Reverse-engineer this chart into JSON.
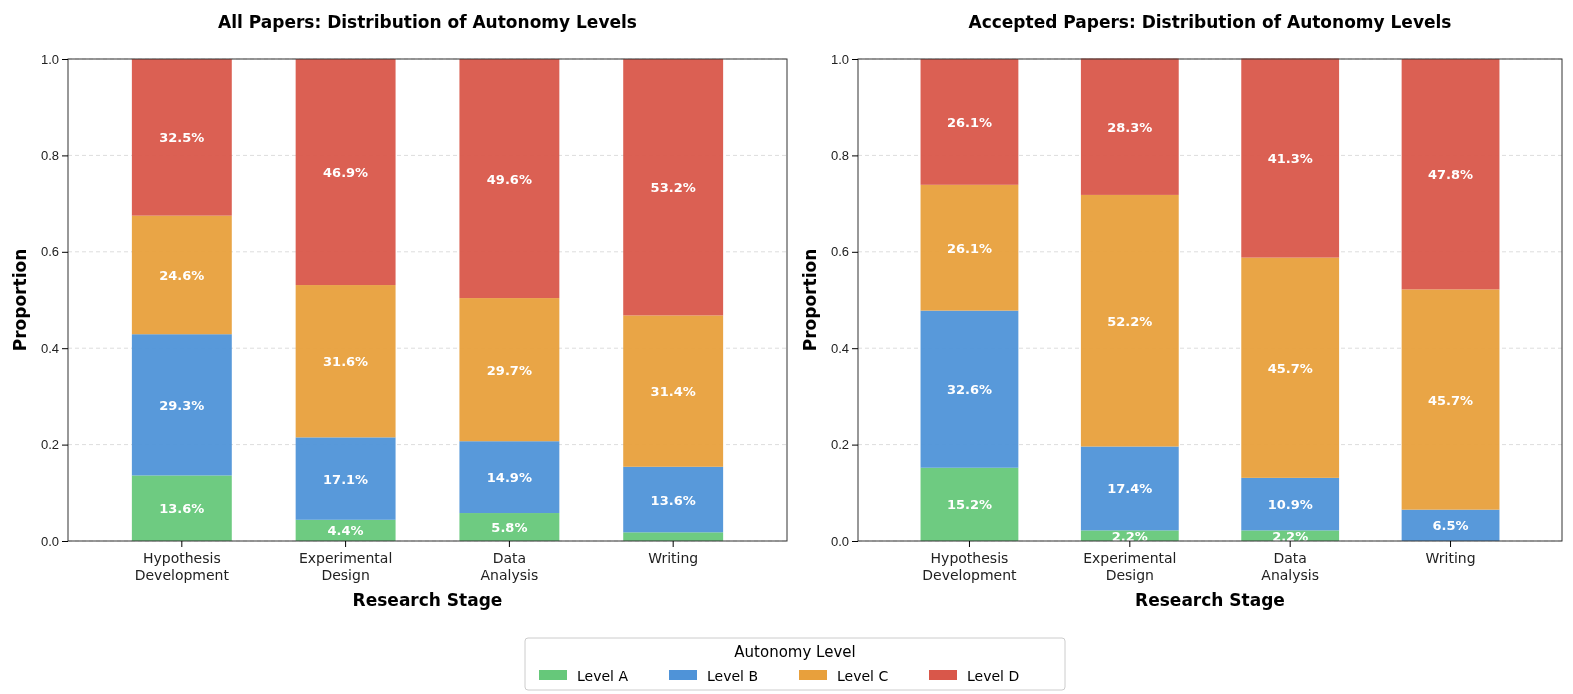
{
  "chart_data": [
    {
      "type": "bar",
      "stacked": true,
      "title": "All Papers: Distribution of Autonomy Levels",
      "xlabel": "Research Stage",
      "ylabel": "Proportion",
      "categories": [
        "Hypothesis\nDevelopment",
        "Experimental\nDesign",
        "Data\nAnalysis",
        "Writing"
      ],
      "ylim": [
        0,
        1
      ],
      "yticks": [
        {
          "value": 0,
          "label": "0.0"
        },
        {
          "value": 0.2,
          "label": "0.2"
        },
        {
          "value": 0.4,
          "label": "0.4"
        },
        {
          "value": 0.6,
          "label": "0.6"
        },
        {
          "value": 0.8,
          "label": "0.8"
        },
        {
          "value": 1,
          "label": "1.0"
        }
      ],
      "grid": "y",
      "legend": "bottom",
      "legend_title": "Autonomy Level",
      "series": [
        {
          "name": "Level A",
          "color": "#66c87a",
          "values": [
            0.136,
            0.044,
            0.058,
            0.018
          ],
          "value_labels": [
            "13.6%",
            "4.4%",
            "5.8%",
            null
          ]
        },
        {
          "name": "Level B",
          "color": "#4f93d8",
          "values": [
            0.293,
            0.171,
            0.149,
            0.136
          ],
          "value_labels": [
            "29.3%",
            "17.1%",
            "14.9%",
            "13.6%"
          ]
        },
        {
          "name": "Level C",
          "color": "#e8a03c",
          "values": [
            0.246,
            0.316,
            0.297,
            0.314
          ],
          "value_labels": [
            "24.6%",
            "31.6%",
            "29.7%",
            "31.4%"
          ]
        },
        {
          "name": "Level D",
          "color": "#d9574a",
          "values": [
            0.325,
            0.469,
            0.496,
            0.532
          ],
          "value_labels": [
            "32.5%",
            "46.9%",
            "49.6%",
            "53.2%"
          ]
        }
      ]
    },
    {
      "type": "bar",
      "stacked": true,
      "title": "Accepted Papers: Distribution of Autonomy Levels",
      "xlabel": "Research Stage",
      "ylabel": "Proportion",
      "categories": [
        "Hypothesis\nDevelopment",
        "Experimental\nDesign",
        "Data\nAnalysis",
        "Writing"
      ],
      "ylim": [
        0,
        1
      ],
      "yticks": [
        {
          "value": 0,
          "label": "0.0"
        },
        {
          "value": 0.2,
          "label": "0.2"
        },
        {
          "value": 0.4,
          "label": "0.4"
        },
        {
          "value": 0.6,
          "label": "0.6"
        },
        {
          "value": 0.8,
          "label": "0.8"
        },
        {
          "value": 1,
          "label": "1.0"
        }
      ],
      "grid": "y",
      "series": [
        {
          "name": "Level A",
          "color": "#66c87a",
          "values": [
            0.152,
            0.022,
            0.022,
            0
          ],
          "value_labels": [
            "15.2%",
            "2.2%",
            "2.2%",
            null
          ]
        },
        {
          "name": "Level B",
          "color": "#4f93d8",
          "values": [
            0.326,
            0.174,
            0.109,
            0.065
          ],
          "value_labels": [
            "32.6%",
            "17.4%",
            "10.9%",
            "6.5%"
          ]
        },
        {
          "name": "Level C",
          "color": "#e8a03c",
          "values": [
            0.261,
            0.522,
            0.457,
            0.457
          ],
          "value_labels": [
            "26.1%",
            "52.2%",
            "45.7%",
            "45.7%"
          ]
        },
        {
          "name": "Level D",
          "color": "#d9574a",
          "values": [
            0.261,
            0.283,
            0.413,
            0.478
          ],
          "value_labels": [
            "26.1%",
            "28.3%",
            "41.3%",
            "47.8%"
          ]
        }
      ]
    }
  ]
}
